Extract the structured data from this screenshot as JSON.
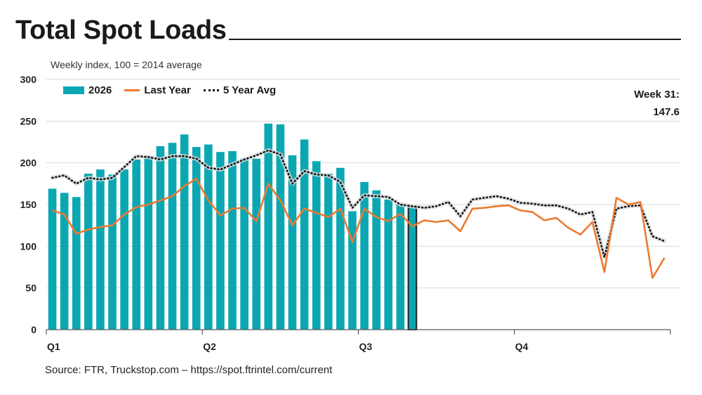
{
  "title": "Total Spot Loads",
  "subtitle": "Weekly index, 100 = 2014 average",
  "note_line1": "Week 31:",
  "note_line2": "147.6",
  "source": "Source: FTR, Truckstop.com – https://spot.ftrintel.com/current",
  "colors": {
    "bar": "#0aa7b3",
    "last_year": "#ec7a30",
    "avg": "#111111",
    "avg_shadow": "#d9d9d9",
    "grid": "#d9d9d9",
    "axis": "#595959"
  },
  "chart_data": {
    "type": "bar",
    "ylim": [
      0,
      300
    ],
    "yticks": [
      0,
      50,
      100,
      150,
      200,
      250,
      300
    ],
    "week_count": 52,
    "quarter_labels": [
      {
        "label": "Q1",
        "week": 1
      },
      {
        "label": "Q2",
        "week": 14
      },
      {
        "label": "Q3",
        "week": 27
      },
      {
        "label": "Q4",
        "week": 40
      }
    ],
    "legend": [
      "2026",
      "Last Year",
      "5 Year Avg"
    ],
    "series": [
      {
        "name": "2026",
        "kind": "bar",
        "highlight_week": 31,
        "values": [
          169,
          164,
          159,
          187,
          192,
          186,
          192,
          204,
          208,
          220,
          224,
          234,
          219,
          222,
          213,
          214,
          205,
          205,
          247,
          246,
          209,
          228,
          202,
          187,
          194,
          142,
          177,
          167,
          156,
          151,
          147.6
        ]
      },
      {
        "name": "Last Year",
        "kind": "line",
        "values": [
          143,
          138,
          115,
          120,
          123,
          125,
          138,
          147,
          150,
          155,
          160,
          172,
          181,
          155,
          137,
          145,
          146,
          130,
          175,
          155,
          125,
          145,
          140,
          135,
          145,
          105,
          145,
          135,
          130,
          139,
          124,
          131,
          129,
          131,
          118,
          145,
          146,
          148,
          149,
          143,
          141,
          131,
          134,
          122,
          114,
          129,
          69,
          158,
          150,
          153,
          62,
          86
        ]
      },
      {
        "name": "5 Year Avg",
        "kind": "dotted",
        "values": [
          182,
          185,
          175,
          182,
          180,
          182,
          195,
          208,
          207,
          204,
          208,
          208,
          205,
          194,
          192,
          198,
          204,
          209,
          215,
          210,
          175,
          190,
          186,
          185,
          177,
          146,
          161,
          160,
          159,
          150,
          148,
          146,
          148,
          153,
          136,
          156,
          158,
          160,
          157,
          152,
          151,
          149,
          149,
          145,
          138,
          141,
          87,
          145,
          148,
          149,
          112,
          106
        ]
      }
    ]
  }
}
